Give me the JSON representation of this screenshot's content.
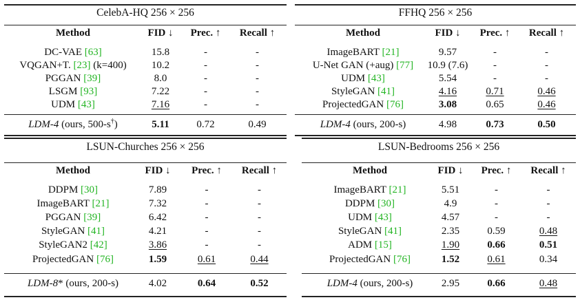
{
  "tables": [
    {
      "title": "CelebA-HQ 256 × 256",
      "headers": [
        "Method",
        "FID ↓",
        "Prec. ↑",
        "Recall ↑"
      ],
      "rows": [
        [
          {
            "t": "DC-VAE ",
            "c": "[63]"
          },
          {
            "t": "15.8"
          },
          {
            "t": "-"
          },
          {
            "t": "-"
          }
        ],
        [
          {
            "t": "VQGAN+T. ",
            "c": "[23]",
            "a": " (k=400)"
          },
          {
            "t": "10.2"
          },
          {
            "t": "-"
          },
          {
            "t": "-"
          }
        ],
        [
          {
            "t": "PGGAN ",
            "c": "[39]"
          },
          {
            "t": "8.0"
          },
          {
            "t": "-"
          },
          {
            "t": "-"
          }
        ],
        [
          {
            "t": "LSGM ",
            "c": "[93]"
          },
          {
            "t": "7.22"
          },
          {
            "t": "-"
          },
          {
            "t": "-"
          }
        ],
        [
          {
            "t": "UDM ",
            "c": "[43]"
          },
          {
            "t": "7.16",
            "u": true
          },
          {
            "t": "-"
          },
          {
            "t": "-"
          }
        ]
      ],
      "ours": [
        {
          "i": "LDM-4",
          "a": " (ours, 500-s",
          "sup": "†",
          "a2": ")"
        },
        {
          "t": "5.11",
          "b": true
        },
        {
          "t": "0.72"
        },
        {
          "t": "0.49"
        }
      ]
    },
    {
      "title": "FFHQ 256 × 256",
      "headers": [
        "Method",
        "FID ↓",
        "Prec. ↑",
        "Recall ↑"
      ],
      "rows": [
        [
          {
            "t": "ImageBART ",
            "c": "[21]"
          },
          {
            "t": "9.57"
          },
          {
            "t": "-"
          },
          {
            "t": "-"
          }
        ],
        [
          {
            "t": "U-Net GAN (+aug) ",
            "c": "[77]"
          },
          {
            "t": "10.9 (7.6)"
          },
          {
            "t": "-"
          },
          {
            "t": "-"
          }
        ],
        [
          {
            "t": "UDM ",
            "c": "[43]"
          },
          {
            "t": "5.54"
          },
          {
            "t": "-"
          },
          {
            "t": "-"
          }
        ],
        [
          {
            "t": "StyleGAN ",
            "c": "[41]"
          },
          {
            "t": "4.16",
            "u": true
          },
          {
            "t": "0.71",
            "u": true
          },
          {
            "t": "0.46",
            "u": true
          }
        ],
        [
          {
            "t": "ProjectedGAN ",
            "c": "[76]"
          },
          {
            "t": "3.08",
            "b": true
          },
          {
            "t": "0.65"
          },
          {
            "t": "0.46",
            "u": true
          }
        ]
      ],
      "ours": [
        {
          "i": "LDM-4",
          "a": " (ours, 200-s)"
        },
        {
          "t": "4.98"
        },
        {
          "t": "0.73",
          "b": true
        },
        {
          "t": "0.50",
          "b": true
        }
      ]
    },
    {
      "title": "LSUN-Churches 256 × 256",
      "headers": [
        "Method",
        "FID ↓",
        "Prec. ↑",
        "Recall ↑"
      ],
      "rows": [
        [
          {
            "t": "DDPM ",
            "c": "[30]"
          },
          {
            "t": "7.89"
          },
          {
            "t": "-"
          },
          {
            "t": "-"
          }
        ],
        [
          {
            "t": "ImageBART ",
            "c": "[21]"
          },
          {
            "t": "7.32"
          },
          {
            "t": "-"
          },
          {
            "t": "-"
          }
        ],
        [
          {
            "t": "PGGAN ",
            "c": "[39]"
          },
          {
            "t": "6.42"
          },
          {
            "t": "-"
          },
          {
            "t": "-"
          }
        ],
        [
          {
            "t": "StyleGAN ",
            "c": "[41]"
          },
          {
            "t": "4.21"
          },
          {
            "t": "-"
          },
          {
            "t": "-"
          }
        ],
        [
          {
            "t": "StyleGAN2 ",
            "c": "[42]"
          },
          {
            "t": "3.86",
            "u": true
          },
          {
            "t": "-"
          },
          {
            "t": "-"
          }
        ],
        [
          {
            "t": "ProjectedGAN ",
            "c": "[76]"
          },
          {
            "t": "1.59",
            "b": true
          },
          {
            "t": "0.61",
            "u": true
          },
          {
            "t": "0.44",
            "u": true
          }
        ]
      ],
      "ours": [
        {
          "i": "LDM-8",
          "a": "* (ours, 200-s)"
        },
        {
          "t": "4.02"
        },
        {
          "t": "0.64",
          "b": true
        },
        {
          "t": "0.52",
          "b": true
        }
      ]
    },
    {
      "title": "LSUN-Bedrooms 256 × 256",
      "headers": [
        "Method",
        "FID ↓",
        "Prec. ↑",
        "Recall ↑"
      ],
      "rows": [
        [
          {
            "t": "ImageBART ",
            "c": "[21]"
          },
          {
            "t": "5.51"
          },
          {
            "t": "-"
          },
          {
            "t": "-"
          }
        ],
        [
          {
            "t": "DDPM ",
            "c": "[30]"
          },
          {
            "t": "4.9"
          },
          {
            "t": "-"
          },
          {
            "t": "-"
          }
        ],
        [
          {
            "t": "UDM ",
            "c": "[43]"
          },
          {
            "t": "4.57"
          },
          {
            "t": "-"
          },
          {
            "t": "-"
          }
        ],
        [
          {
            "t": "StyleGAN ",
            "c": "[41]"
          },
          {
            "t": "2.35"
          },
          {
            "t": "0.59"
          },
          {
            "t": "0.48",
            "u": true
          }
        ],
        [
          {
            "t": "ADM ",
            "c": "[15]"
          },
          {
            "t": "1.90",
            "u": true
          },
          {
            "t": "0.66",
            "b": true
          },
          {
            "t": "0.51",
            "b": true
          }
        ],
        [
          {
            "t": "ProjectedGAN ",
            "c": "[76]"
          },
          {
            "t": "1.52",
            "b": true
          },
          {
            "t": "0.61",
            "u": true
          },
          {
            "t": "0.34"
          }
        ]
      ],
      "ours": [
        {
          "i": "LDM-4",
          "a": " (ours, 200-s)"
        },
        {
          "t": "2.95"
        },
        {
          "t": "0.66",
          "b": true
        },
        {
          "t": "0.48",
          "u": true
        }
      ]
    }
  ]
}
